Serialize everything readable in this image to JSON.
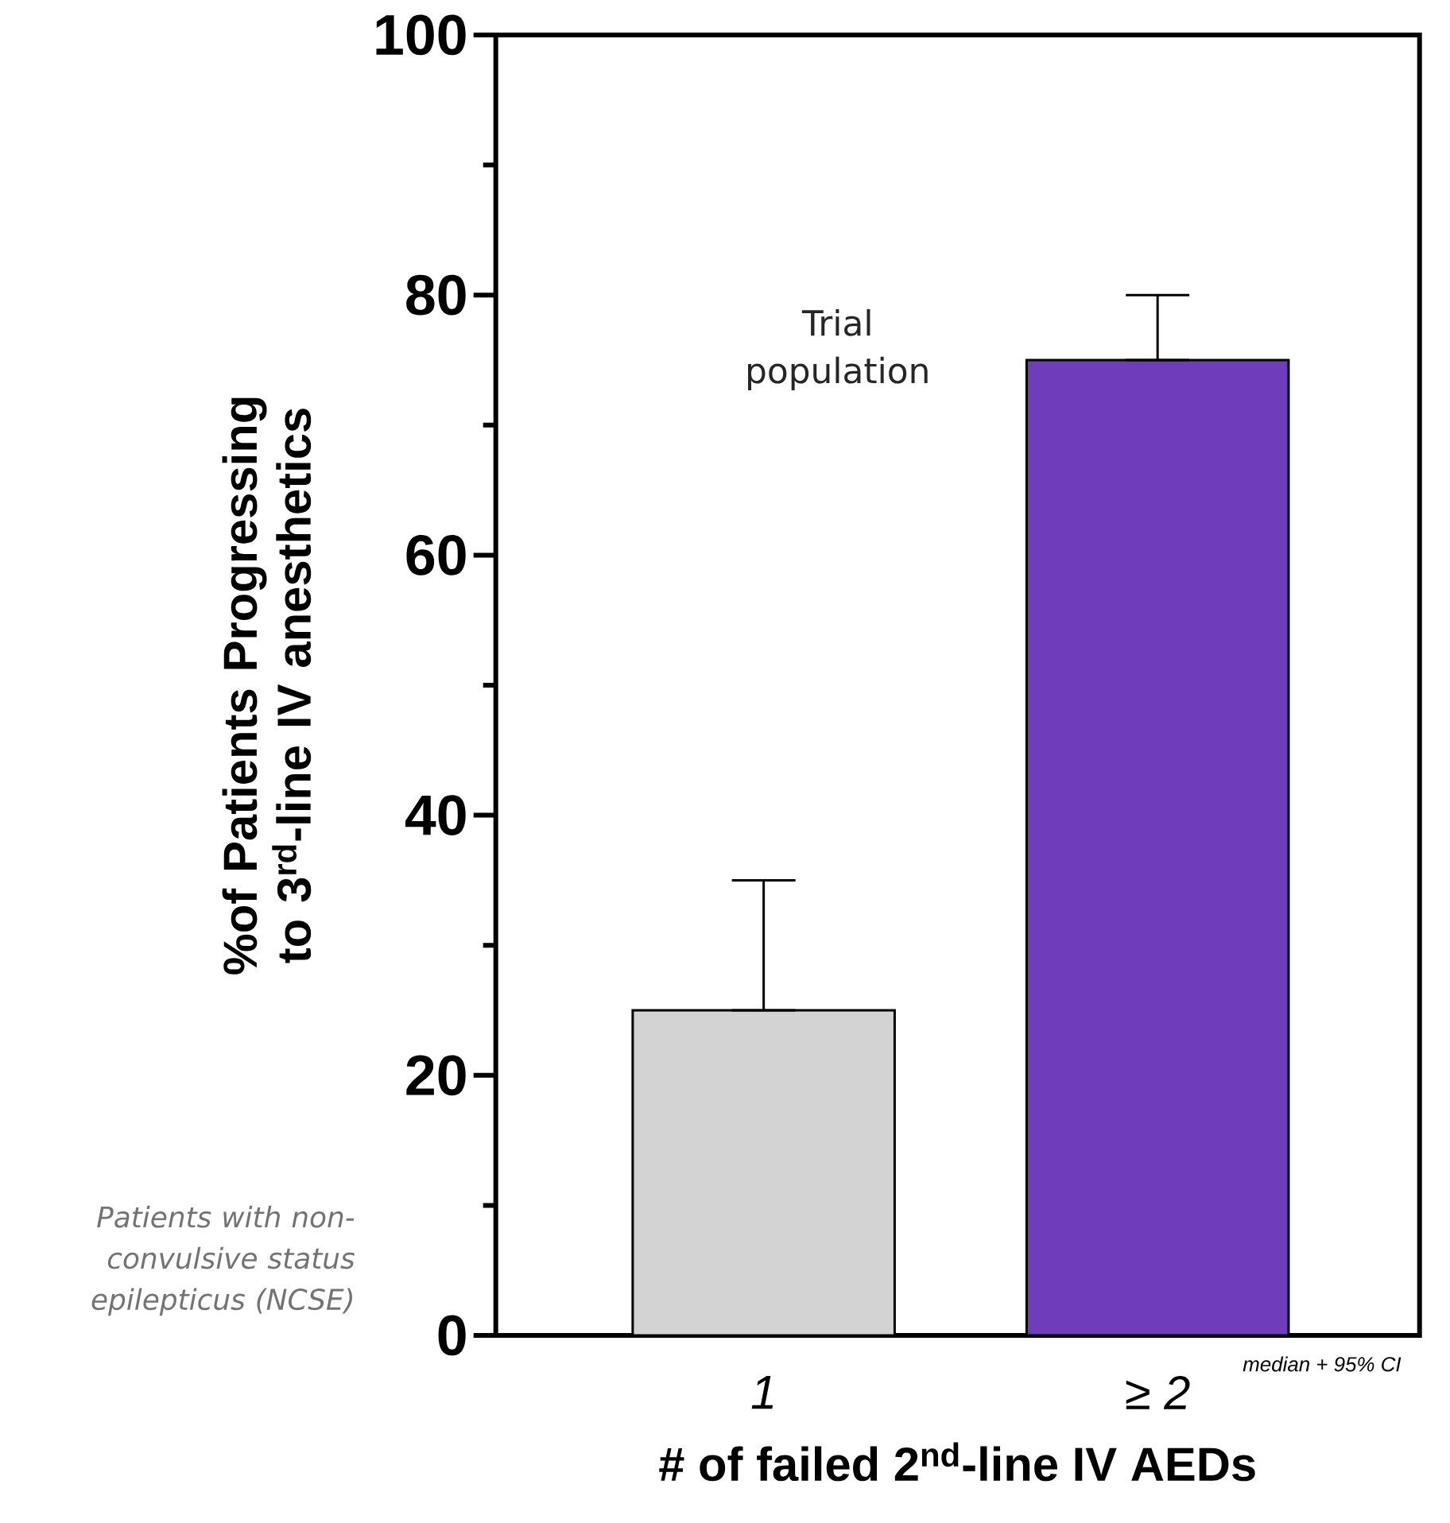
{
  "chart_data": {
    "type": "bar",
    "categories": [
      "1",
      "≥ 2"
    ],
    "values": [
      25,
      75
    ],
    "colors": [
      "#d3d3d3",
      "#6f3dbb"
    ],
    "errors": [
      [
        25,
        35
      ],
      [
        75,
        80
      ]
    ],
    "ylim": [
      0,
      100
    ],
    "yticks": [
      0,
      {
        "value": 10,
        "label": null
      },
      20,
      {
        "value": 30,
        "label": null
      },
      40,
      {
        "value": 50,
        "label": null
      },
      60,
      {
        "value": 70,
        "label": null
      },
      80,
      {
        "value": 90,
        "label": null
      },
      100
    ],
    "xlabel": "# of failed 2$^{nd}$-line IV AEDs",
    "ylabel": "%of Patients Progressing to 3$^{rd}$-line IV anesthetics",
    "annotations": [
      "Trial population",
      "Patients with non-convulsive status epilepticus (NCSE)",
      "median + 95% CI"
    ]
  }
}
